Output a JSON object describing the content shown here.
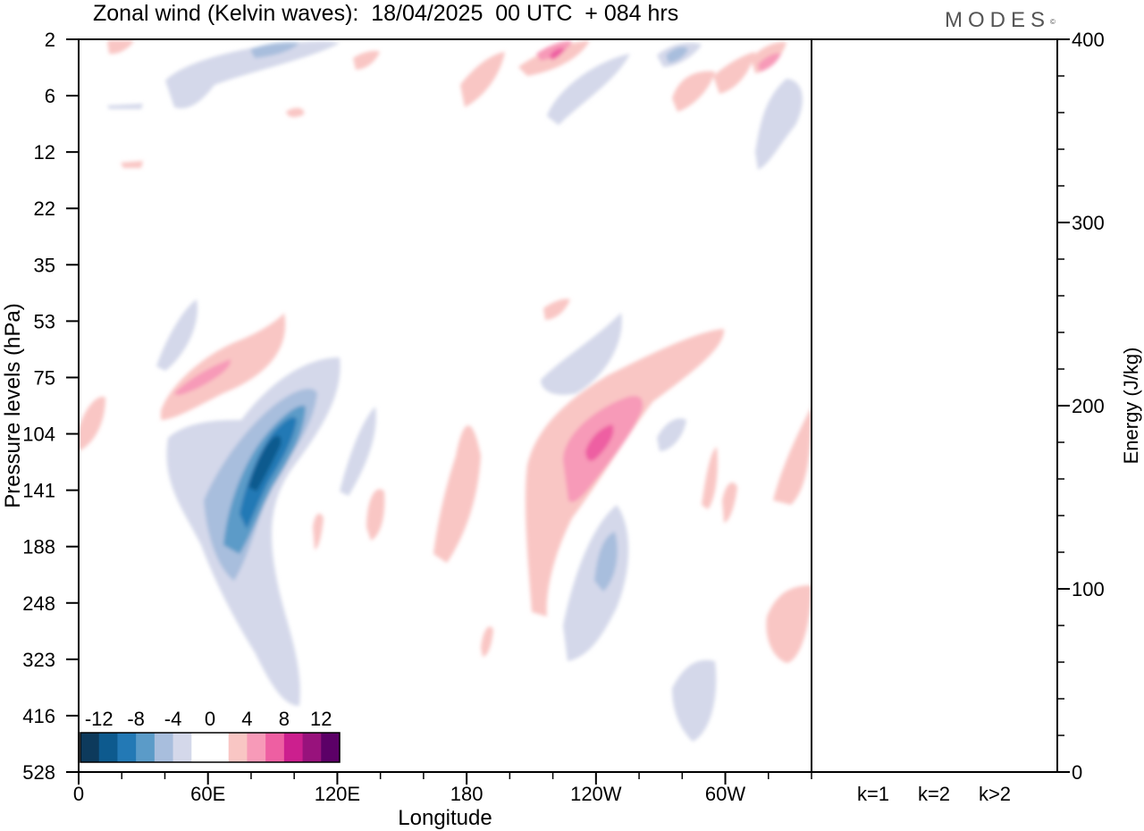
{
  "header": {
    "title": "Zonal wind (Kelvin waves):  18/04/2025  00 UTC  + 084 hrs",
    "brand": "MODES",
    "brand_mark": "©"
  },
  "chart_data": {
    "type": "heatmap",
    "title": "Zonal wind (Kelvin waves):  18/04/2025  00 UTC  + 084 hrs",
    "xlabel": "Longitude",
    "ylabel": "Pressure levels (hPa)",
    "x_ticks": [
      "0",
      "60E",
      "120E",
      "180",
      "120W",
      "60W"
    ],
    "x_tick_degrees": [
      0,
      60,
      120,
      180,
      240,
      300
    ],
    "xlim": [
      0,
      340
    ],
    "y_ticks": [
      "2",
      "6",
      "12",
      "22",
      "35",
      "53",
      "75",
      "104",
      "141",
      "188",
      "248",
      "323",
      "416",
      "528"
    ],
    "colorbar": {
      "tick_labels": [
        "-12",
        "-8",
        "-4",
        "0",
        "4",
        "8",
        "12"
      ],
      "colors": [
        "#0d3a5c",
        "#0d5a8e",
        "#2379b5",
        "#5b9bc8",
        "#a8bedd",
        "#d4d8ea",
        "#ffffff",
        "#ffffff",
        "#f9c6c4",
        "#f79ab8",
        "#ee5fa2",
        "#cc1f8e",
        "#98127c",
        "#5c0067"
      ]
    },
    "wind_anomalies": [
      {
        "sign": "negative",
        "lon_center": 82,
        "level_center": "141",
        "min_value": -12
      },
      {
        "sign": "positive",
        "lon_center": 238,
        "level_center": "104",
        "max_value": 8
      },
      {
        "sign": "positive",
        "lon_center": 55,
        "level_center": "75",
        "max_value": 8
      },
      {
        "sign": "negative",
        "lon_center": 243,
        "level_center": "188",
        "min_value": -8
      },
      {
        "sign": "positive",
        "lon_center": 225,
        "level_center": "2",
        "max_value": 8
      },
      {
        "sign": "negative",
        "lon_center": 80,
        "level_center": "2",
        "min_value": -8
      }
    ],
    "energy_panel": {
      "ylabel": "Energy (J/kg)",
      "ylim": [
        0,
        400
      ],
      "y_ticks": [
        "0",
        "100",
        "200",
        "300",
        "400"
      ],
      "categories": [
        "k=1",
        "k=2",
        "k>2"
      ],
      "values": [
        0,
        0,
        0
      ]
    }
  }
}
